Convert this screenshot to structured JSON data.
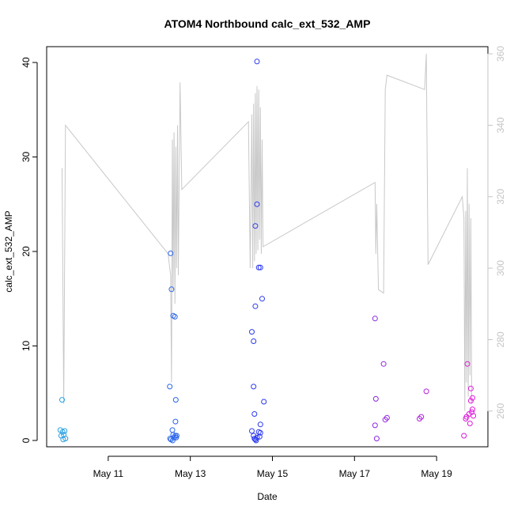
{
  "chart_data": {
    "type": "scatter",
    "title": "ATOM4 Northbound calc_ext_532_AMP",
    "xlabel": "Date",
    "ylabel": "calc_ext_532_AMP",
    "x_ticks": [
      "May 11",
      "May 13",
      "May 15",
      "May 17",
      "May 19"
    ],
    "y_ticks": [
      0,
      10,
      20,
      30,
      40
    ],
    "y2_ticks": [
      260,
      280,
      300,
      320,
      340,
      360
    ],
    "ylim": [
      0,
      40
    ],
    "y2lim": [
      250,
      362
    ],
    "grid": false,
    "legend": "none",
    "colors": {
      "points_start": "#29a9e0",
      "points_mid": "#2a33f0",
      "points_end": "#ee18d8",
      "secondary_line": "#c8c8c8",
      "right_axis": "#c4c4c4"
    },
    "series": [
      {
        "type": "scatter",
        "points": [
          [
            "May 9 20:00",
            1.1
          ],
          [
            "May 9 20:30",
            0.5
          ],
          [
            "May 9 21:00",
            4.3
          ],
          [
            "May 9 21:20",
            0.9
          ],
          [
            "May 9 21:40",
            0.1
          ],
          [
            "May 9 22:00",
            0.6
          ],
          [
            "May 9 22:30",
            1.0
          ],
          [
            "May 9 23:00",
            0.2
          ],
          [
            "May 12 12:00",
            5.7
          ],
          [
            "May 12 12:30",
            19.8
          ],
          [
            "May 12 13:00",
            16.0
          ],
          [
            "May 12 14:00",
            13.2
          ],
          [
            "May 12 15:00",
            13.1
          ],
          [
            "May 12 15:30",
            4.3
          ],
          [
            "May 12 13:30",
            1.1
          ],
          [
            "May 12 12:10",
            0.2
          ],
          [
            "May 12 12:40",
            0.1
          ],
          [
            "May 12 14:00",
            0.6
          ],
          [
            "May 12 14:30",
            0.3
          ],
          [
            "May 12 15:10",
            0.5
          ],
          [
            "May 12 15:40",
            0.3
          ],
          [
            "May 12 13:40",
            0.0
          ],
          [
            "May 12 15:20",
            2.0
          ],
          [
            "May 12 16:00",
            0.5
          ],
          [
            "May 14 12:00",
            11.5
          ],
          [
            "May 14 13:00",
            10.5
          ],
          [
            "May 14 13:00",
            5.7
          ],
          [
            "May 14 13:30",
            2.8
          ],
          [
            "May 14 14:00",
            14.2
          ],
          [
            "May 14 14:00",
            22.7
          ],
          [
            "May 14 15:00",
            25.0
          ],
          [
            "May 14 15:00",
            40.1
          ],
          [
            "May 14 16:00",
            18.3
          ],
          [
            "May 14 17:00",
            18.3
          ],
          [
            "May 14 18:00",
            15.0
          ],
          [
            "May 14 19:00",
            4.1
          ],
          [
            "May 14 17:00",
            1.7
          ],
          [
            "May 14 12:00",
            1.0
          ],
          [
            "May 14 13:00",
            0.5
          ],
          [
            "May 14 14:00",
            0.1
          ],
          [
            "May 14 15:00",
            0.3
          ],
          [
            "May 14 16:00",
            0.9
          ],
          [
            "May 14 16:30",
            0.4
          ],
          [
            "May 14 17:00",
            0.8
          ],
          [
            "May 14 13:30",
            0.2
          ],
          [
            "May 14 14:30",
            0.0
          ],
          [
            "May 17 12:00",
            12.9
          ],
          [
            "May 17 12:00",
            1.6
          ],
          [
            "May 17 12:30",
            4.4
          ],
          [
            "May 17 13:00",
            0.2
          ],
          [
            "May 17 17:00",
            8.1
          ],
          [
            "May 17 18:00",
            2.2
          ],
          [
            "May 17 19:00",
            2.4
          ],
          [
            "May 18 14:00",
            2.3
          ],
          [
            "May 18 15:00",
            2.5
          ],
          [
            "May 18 18:00",
            5.2
          ],
          [
            "May 19 16:00",
            0.5
          ],
          [
            "May 19 17:00",
            2.3
          ],
          [
            "May 19 17:30",
            2.5
          ],
          [
            "May 19 18:00",
            8.1
          ],
          [
            "May 19 19:00",
            2.8
          ],
          [
            "May 19 19:30",
            1.8
          ],
          [
            "May 19 20:00",
            5.5
          ],
          [
            "May 19 20:00",
            4.2
          ],
          [
            "May 19 20:30",
            3.0
          ],
          [
            "May 19 21:00",
            3.3
          ],
          [
            "May 19 21:00",
            4.5
          ],
          [
            "May 19 21:30",
            2.6
          ]
        ]
      },
      {
        "type": "line",
        "axis": "right",
        "points": [
          [
            "May 9 21:00",
            328
          ],
          [
            "May 9 22:00",
            262
          ],
          [
            "May 9 23:00",
            340
          ],
          [
            "May 12 11:00",
            304
          ],
          [
            "May 12 12:00",
            300
          ],
          [
            "May 12 12:30",
            298
          ],
          [
            "May 12 13:00",
            268
          ],
          [
            "May 12 13:30",
            336
          ],
          [
            "May 12 14:00",
            294
          ],
          [
            "May 12 14:30",
            338
          ],
          [
            "May 12 15:00",
            290
          ],
          [
            "May 12 15:30",
            334
          ],
          [
            "May 12 16:00",
            300
          ],
          [
            "May 12 16:30",
            340
          ],
          [
            "May 12 17:00",
            298
          ],
          [
            "May 12 18:00",
            352
          ],
          [
            "May 12 19:00",
            322
          ],
          [
            "May 14 10:00",
            341
          ],
          [
            "May 14 11:00",
            300
          ],
          [
            "May 14 12:00",
            343
          ],
          [
            "May 14 12:30",
            300
          ],
          [
            "May 14 13:00",
            346
          ],
          [
            "May 14 13:30",
            302
          ],
          [
            "May 14 14:00",
            349
          ],
          [
            "May 14 14:30",
            304
          ],
          [
            "May 14 15:00",
            351
          ],
          [
            "May 14 15:30",
            305
          ],
          [
            "May 14 16:00",
            350
          ],
          [
            "May 14 16:30",
            308
          ],
          [
            "May 14 17:00",
            345
          ],
          [
            "May 14 17:30",
            304
          ],
          [
            "May 14 18:00",
            336
          ],
          [
            "May 14 18:30",
            306
          ],
          [
            "May 17 12:00",
            324
          ],
          [
            "May 17 12:30",
            304
          ],
          [
            "May 17 13:00",
            318
          ],
          [
            "May 17 14:00",
            294
          ],
          [
            "May 17 17:00",
            293
          ],
          [
            "May 17 18:00",
            350
          ],
          [
            "May 17 19:00",
            354
          ],
          [
            "May 18 17:00",
            350
          ],
          [
            "May 18 18:00",
            360
          ],
          [
            "May 18 19:00",
            301
          ],
          [
            "May 19 15:00",
            320
          ],
          [
            "May 19 16:00",
            314
          ],
          [
            "May 19 16:30",
            260
          ],
          [
            "May 19 17:00",
            316
          ],
          [
            "May 19 17:30",
            268
          ],
          [
            "May 19 18:00",
            328
          ],
          [
            "May 19 18:30",
            264
          ],
          [
            "May 19 19:00",
            318
          ],
          [
            "May 19 19:30",
            270
          ],
          [
            "May 19 20:00",
            314
          ],
          [
            "May 19 20:30",
            262
          ]
        ]
      }
    ]
  }
}
